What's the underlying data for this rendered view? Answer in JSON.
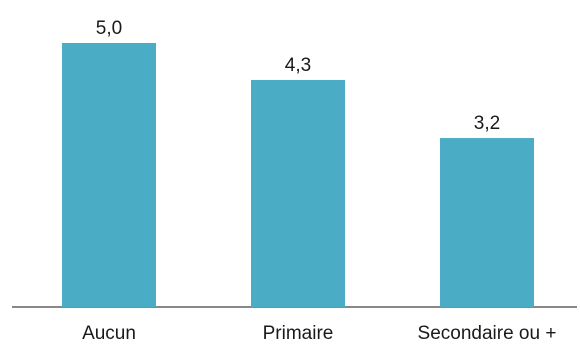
{
  "chart_data": {
    "type": "bar",
    "categories": [
      "Aucun",
      "Primaire",
      "Secondaire ou +"
    ],
    "values": [
      5.0,
      4.3,
      3.2
    ],
    "value_labels": [
      "5,0",
      "4,3",
      "3,2"
    ],
    "title": "",
    "xlabel": "",
    "ylabel": "",
    "ylim": [
      0,
      5
    ],
    "grid": false,
    "bar_color": "#4bacc6",
    "axis_color": "#404040"
  }
}
